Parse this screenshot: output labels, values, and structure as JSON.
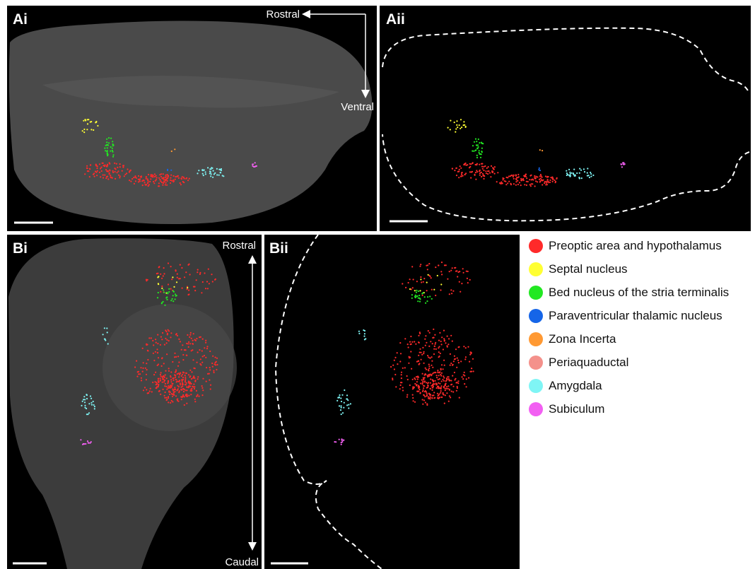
{
  "panels": [
    {
      "label": "Ai",
      "axis_start": "Rostral",
      "axis_end": "Ventral"
    },
    {
      "label": "Aii"
    },
    {
      "label": "Bi",
      "axis_start": "Rostral",
      "axis_end": "Caudal"
    },
    {
      "label": "Bii"
    }
  ],
  "legend": {
    "items": [
      {
        "label": "Preoptic area and hypothalamus",
        "color": "#ff2a2a"
      },
      {
        "label": "Septal nucleus",
        "color": "#ffff33"
      },
      {
        "label": "Bed nucleus of the stria terminalis",
        "color": "#22e822"
      },
      {
        "label": "Paraventricular thalamic nucleus",
        "color": "#1565e8"
      },
      {
        "label": "Zona Incerta",
        "color": "#ff9933"
      },
      {
        "label": "Periaquaductal",
        "color": "#f4918b"
      },
      {
        "label": "Amygdala",
        "color": "#7ff5f5"
      },
      {
        "label": "Subiculum",
        "color": "#f25ff2"
      }
    ]
  }
}
